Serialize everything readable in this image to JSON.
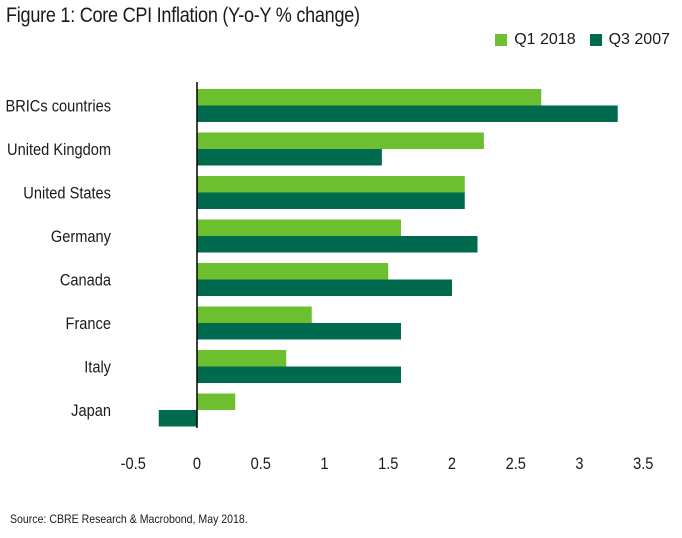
{
  "title": "Figure 1: Core CPI Inflation (Y-o-Y % change)",
  "source": "Source: CBRE Research & Macrobond, May 2018.",
  "colors": {
    "q1_2018": "#6cbf2f",
    "q3_2007": "#006a4e"
  },
  "chart_data": {
    "type": "bar",
    "orientation": "horizontal",
    "title": "Figure 1: Core CPI Inflation (Y-o-Y % change)",
    "categories": [
      "BRICs countries",
      "United Kingdom",
      "United States",
      "Germany",
      "Canada",
      "France",
      "Italy",
      "Japan"
    ],
    "series": [
      {
        "name": "Q1 2018",
        "values": [
          2.7,
          2.25,
          2.1,
          1.6,
          1.5,
          0.9,
          0.7,
          0.3
        ]
      },
      {
        "name": "Q3 2007",
        "values": [
          3.3,
          1.45,
          2.1,
          2.2,
          2.0,
          1.6,
          1.6,
          -0.3
        ]
      }
    ],
    "xlim": [
      -0.5,
      3.5
    ],
    "xticks": [
      "-0.5",
      "0",
      "0.5",
      "1",
      "1.5",
      "2",
      "2.5",
      "3",
      "3.5"
    ],
    "grid": false,
    "legend": "top-right"
  }
}
